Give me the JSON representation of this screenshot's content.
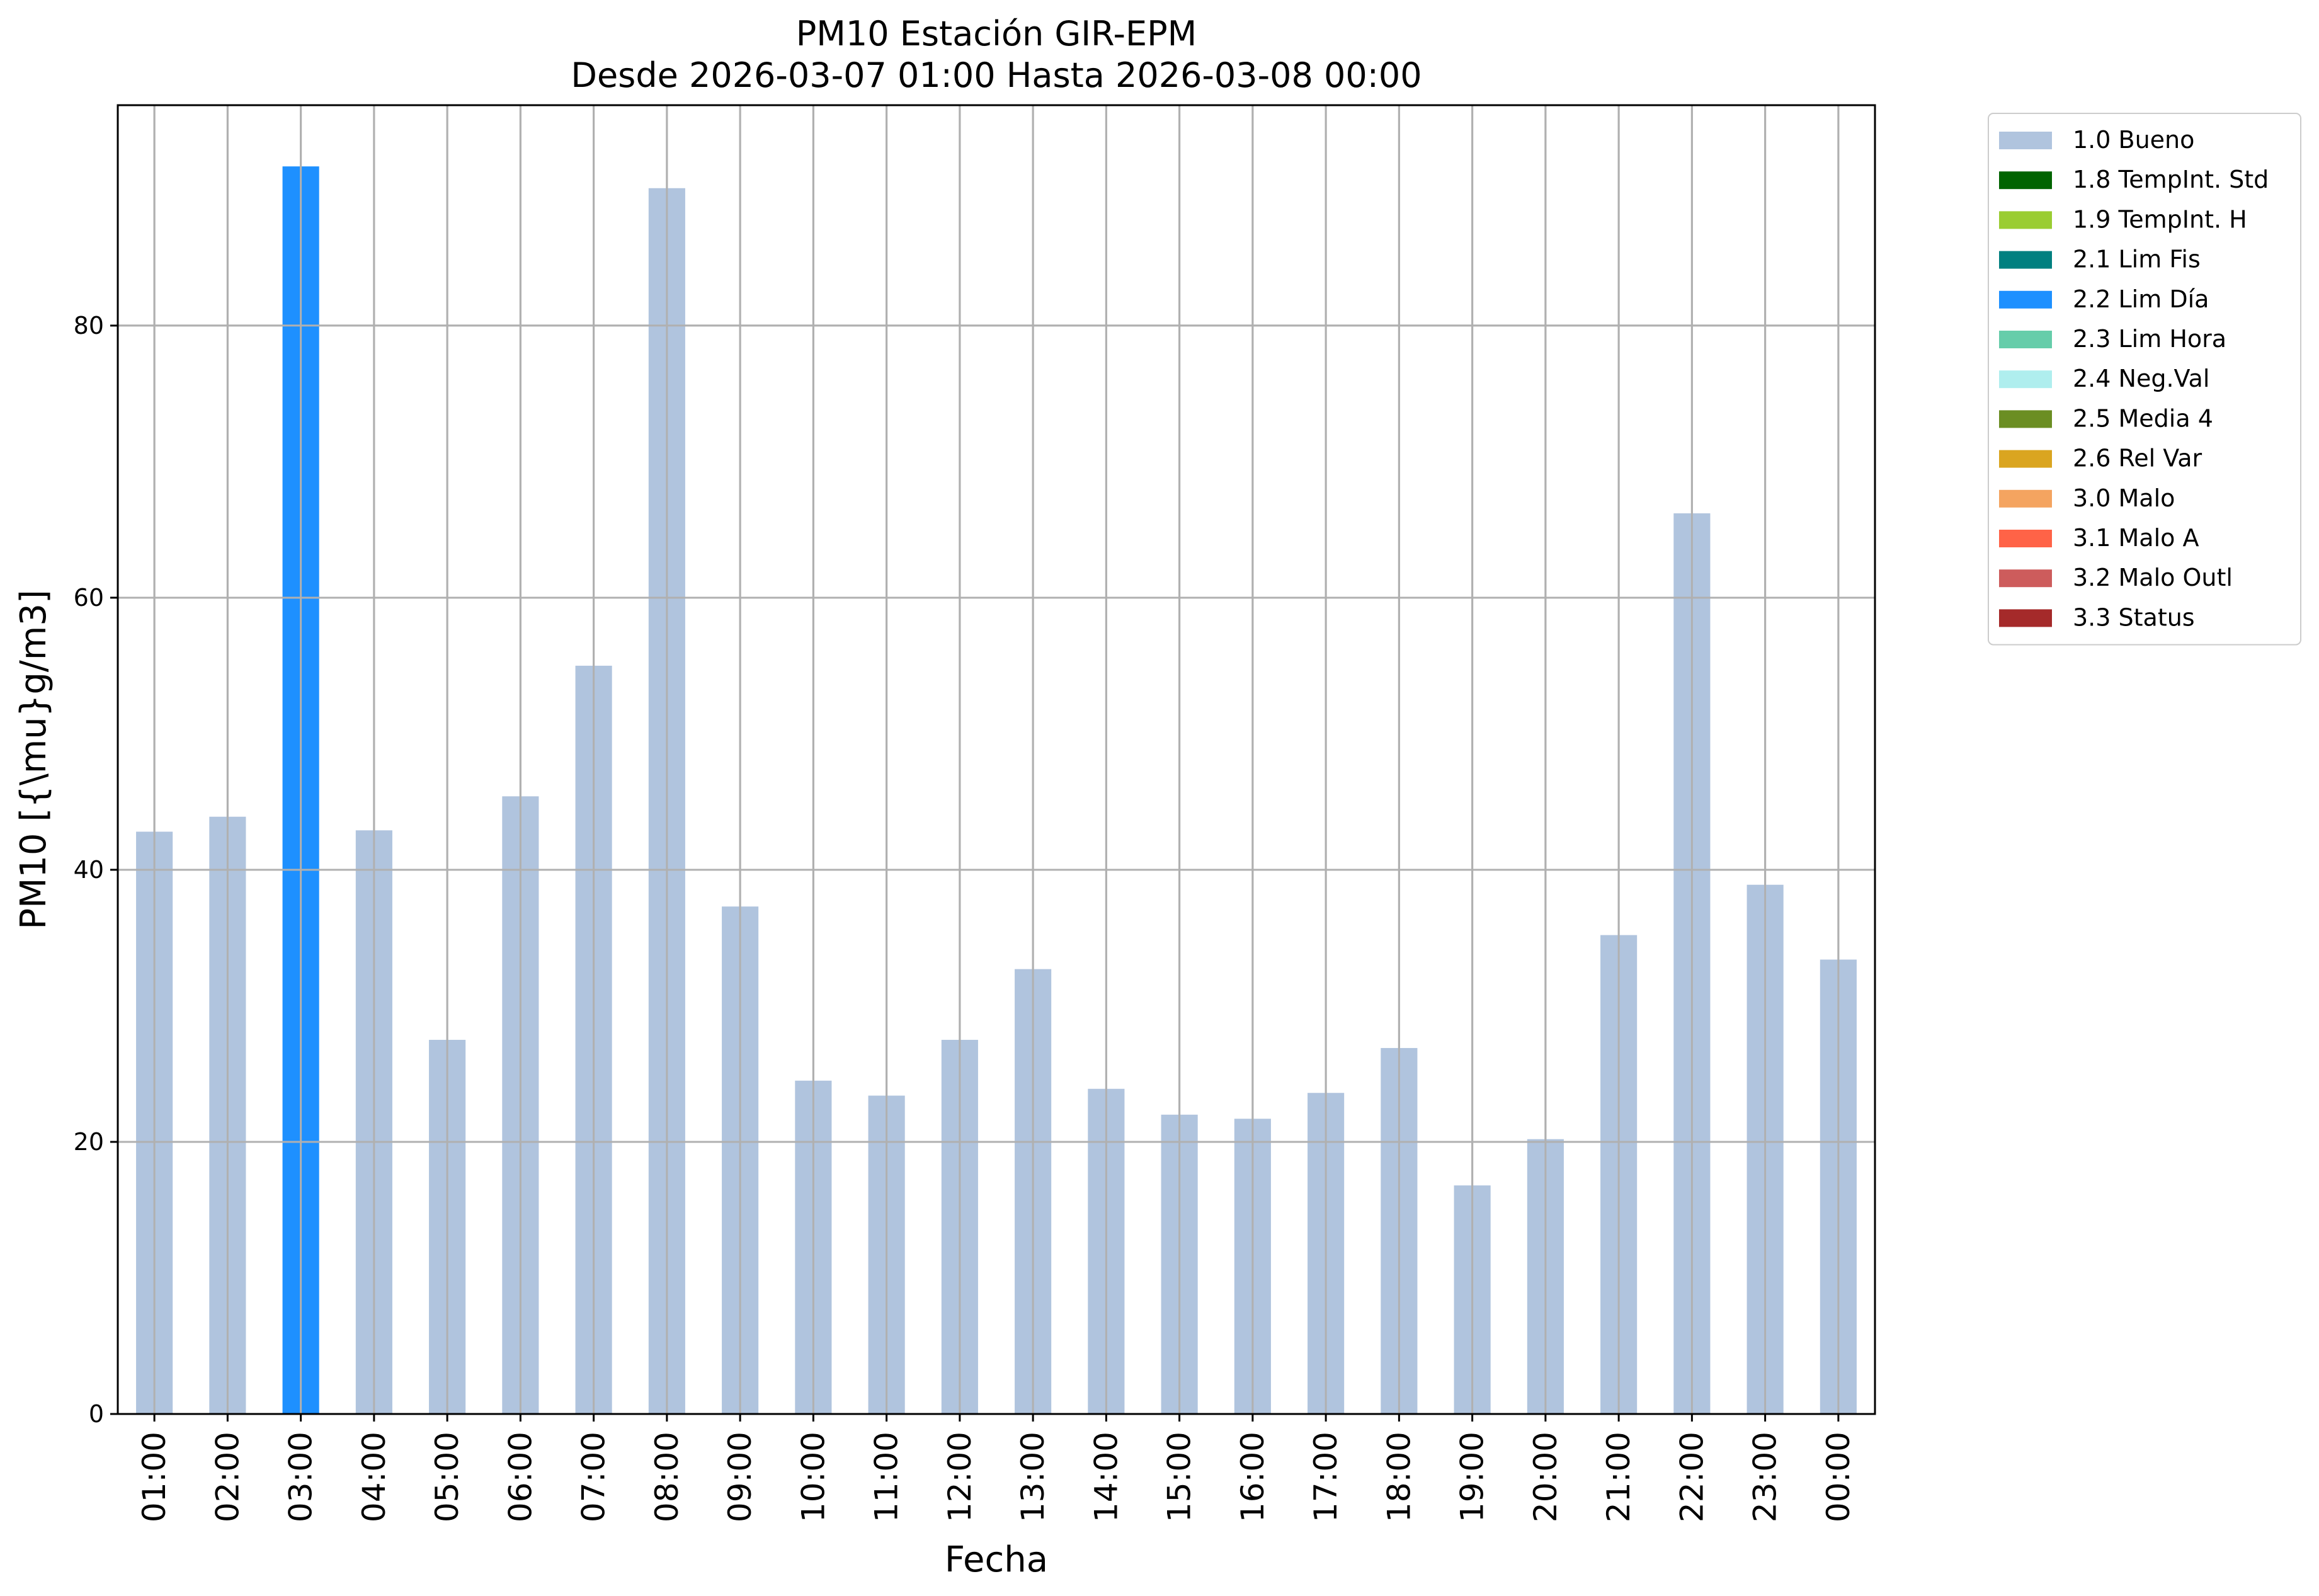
{
  "chart_data": {
    "type": "bar",
    "title": "PM10 Estación GIR-EPM",
    "subtitle": "Desde 2026-03-07 01:00 Hasta 2026-03-08 00:00",
    "xlabel": "Fecha",
    "ylabel": "PM10 [{\\mu}g/m3]",
    "ylim": [
      0,
      96.2
    ],
    "yticks": [
      0,
      20,
      40,
      60,
      80
    ],
    "grid": true,
    "legend_position": "outside-right-top",
    "categories": [
      "01:00",
      "02:00",
      "03:00",
      "04:00",
      "05:00",
      "06:00",
      "07:00",
      "08:00",
      "09:00",
      "10:00",
      "11:00",
      "12:00",
      "13:00",
      "14:00",
      "15:00",
      "16:00",
      "17:00",
      "18:00",
      "19:00",
      "20:00",
      "21:00",
      "22:00",
      "23:00",
      "00:00"
    ],
    "values": [
      42.8,
      43.9,
      91.7,
      42.9,
      27.5,
      45.4,
      55.0,
      90.1,
      37.3,
      24.5,
      23.4,
      27.5,
      32.7,
      23.9,
      22.0,
      21.7,
      23.6,
      26.9,
      16.8,
      20.2,
      35.2,
      66.2,
      38.9,
      33.4
    ],
    "flags": [
      "1.0 Bueno",
      "1.0 Bueno",
      "2.2 Lim Día",
      "1.0 Bueno",
      "1.0 Bueno",
      "1.0 Bueno",
      "1.0 Bueno",
      "1.0 Bueno",
      "1.0 Bueno",
      "1.0 Bueno",
      "1.0 Bueno",
      "1.0 Bueno",
      "1.0 Bueno",
      "1.0 Bueno",
      "1.0 Bueno",
      "1.0 Bueno",
      "1.0 Bueno",
      "1.0 Bueno",
      "1.0 Bueno",
      "1.0 Bueno",
      "1.0 Bueno",
      "1.0 Bueno",
      "1.0 Bueno",
      "1.0 Bueno"
    ],
    "legend": [
      {
        "label": "1.0 Bueno",
        "color": "#b0c4de"
      },
      {
        "label": "1.8 TempInt. Std",
        "color": "#006400"
      },
      {
        "label": "1.9 TempInt. H",
        "color": "#9acd32"
      },
      {
        "label": "2.1 Lim Fis",
        "color": "#008080"
      },
      {
        "label": "2.2 Lim Día",
        "color": "#1e90ff"
      },
      {
        "label": "2.3 Lim Hora",
        "color": "#66cdaa"
      },
      {
        "label": "2.4 Neg.Val",
        "color": "#afeeee"
      },
      {
        "label": "2.5 Media 4",
        "color": "#6b8e23"
      },
      {
        "label": "2.6 Rel Var",
        "color": "#daa520"
      },
      {
        "label": "3.0 Malo",
        "color": "#f4a460"
      },
      {
        "label": "3.1 Malo A",
        "color": "#ff6347"
      },
      {
        "label": "3.2 Malo Outl",
        "color": "#cd5c5c"
      },
      {
        "label": "3.3 Status",
        "color": "#a52a2a"
      }
    ],
    "colors": {
      "grid": "#b0b0b0",
      "axes": "#000000"
    }
  }
}
